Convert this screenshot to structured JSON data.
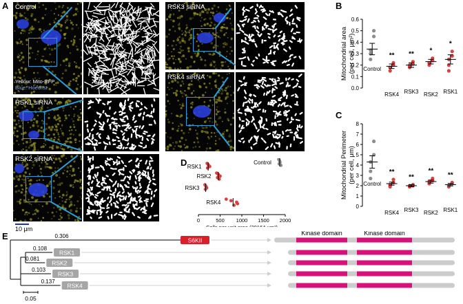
{
  "panel_letters": {
    "a": "A",
    "b": "B",
    "c": "C",
    "d": "D",
    "e": "E"
  },
  "microscopy": {
    "panels": [
      {
        "label": "Control",
        "legend_yellow": "Yellow: Mito-RFP",
        "legend_blue": "Blue: Hoechst"
      },
      {
        "label": "RSK1 siRNA"
      },
      {
        "label": "RSK2 siRNA"
      },
      {
        "label": "RSK3 siRNA"
      },
      {
        "label": "RSK4 siRNA"
      }
    ],
    "scale_bar": "10 μm"
  },
  "chart_data": [
    {
      "id": "B",
      "type": "scatter",
      "ylabel": "Mitochondrial area\n(per cell, μm²)",
      "ylim": [
        0,
        0.6
      ],
      "yticks": [
        0.0,
        0.1,
        0.2,
        0.3,
        0.4,
        0.5,
        0.6
      ],
      "categories": [
        "Control",
        "RSK4",
        "RSK3",
        "RSK2",
        "RSK1"
      ],
      "significance": [
        "",
        "**",
        "**",
        "*",
        "*"
      ],
      "mean": [
        0.34,
        0.19,
        0.2,
        0.23,
        0.25
      ],
      "sem": [
        0.05,
        0.02,
        0.02,
        0.02,
        0.04
      ],
      "points": [
        [
          0.5,
          0.45,
          0.33,
          0.3,
          0.25
        ],
        [
          0.22,
          0.2,
          0.18,
          0.15,
          0.18
        ],
        [
          0.23,
          0.21,
          0.19,
          0.18,
          0.2
        ],
        [
          0.26,
          0.24,
          0.22,
          0.22,
          0.2
        ],
        [
          0.32,
          0.28,
          0.25,
          0.2,
          0.15
        ]
      ],
      "colors": {
        "control": "#8c8c8c",
        "treated": "#d94040"
      }
    },
    {
      "id": "C",
      "type": "scatter",
      "ylabel": "Mitochondrial Perimeter\n(per cell, μm)",
      "ylim": [
        0,
        8
      ],
      "yticks": [
        0,
        1,
        2,
        3,
        4,
        5,
        6,
        7,
        8
      ],
      "categories": [
        "Control",
        "RSK4",
        "RSK3",
        "RSK2",
        "RSK1"
      ],
      "significance": [
        "",
        "**",
        "**",
        "**",
        "**"
      ],
      "mean": [
        4.3,
        2.2,
        2.0,
        2.4,
        2.1
      ],
      "sem": [
        0.6,
        0.15,
        0.1,
        0.15,
        0.12
      ],
      "points": [
        [
          6.3,
          5.0,
          4.3,
          3.4,
          2.7
        ],
        [
          2.6,
          2.3,
          2.1,
          1.9,
          2.0
        ],
        [
          2.1,
          2.0,
          1.9,
          1.9,
          2.0
        ],
        [
          2.7,
          2.5,
          2.3,
          2.2,
          2.4
        ],
        [
          2.3,
          2.2,
          2.0,
          1.9,
          2.0
        ]
      ],
      "colors": {
        "control": "#8c8c8c",
        "treated": "#d94040"
      }
    },
    {
      "id": "D",
      "type": "scatter",
      "xlabel": "Cells per unit area (20164 μm²)",
      "xlim": [
        0,
        2000
      ],
      "xticks": [
        0,
        500,
        1000,
        1500,
        2000
      ],
      "categories": [
        "RSK1",
        "RSK2",
        "RSK3",
        "RSK4",
        "Control"
      ],
      "points": [
        [
          200,
          230,
          260,
          210
        ],
        [
          420,
          460,
          500,
          440,
          480
        ],
        [
          150,
          170,
          190,
          160
        ],
        [
          640,
          750,
          880,
          900,
          820
        ],
        [
          1850,
          1870,
          1880,
          1860,
          1900
        ]
      ],
      "colors": {
        "control": "#8c8c8c",
        "treated": "#d94040"
      }
    }
  ],
  "tree": {
    "branches": [
      {
        "name": "S6KII",
        "length": "0.306"
      },
      {
        "name": "RSK1",
        "length": "0.108"
      },
      {
        "name": "RSK2",
        "length": "0.081"
      },
      {
        "name": "RSK3",
        "length": "0.103"
      },
      {
        "name": "RSK4",
        "length": "0.137"
      }
    ],
    "scale": "0.05",
    "domain_label_1": "Kinase domain",
    "domain_label_2": "Kinase domain",
    "colors": {
      "s6kii": "#d91f2a",
      "rsk": "#a6a6a6",
      "kinase": "#d4127a",
      "protein": "#cccccc"
    }
  }
}
